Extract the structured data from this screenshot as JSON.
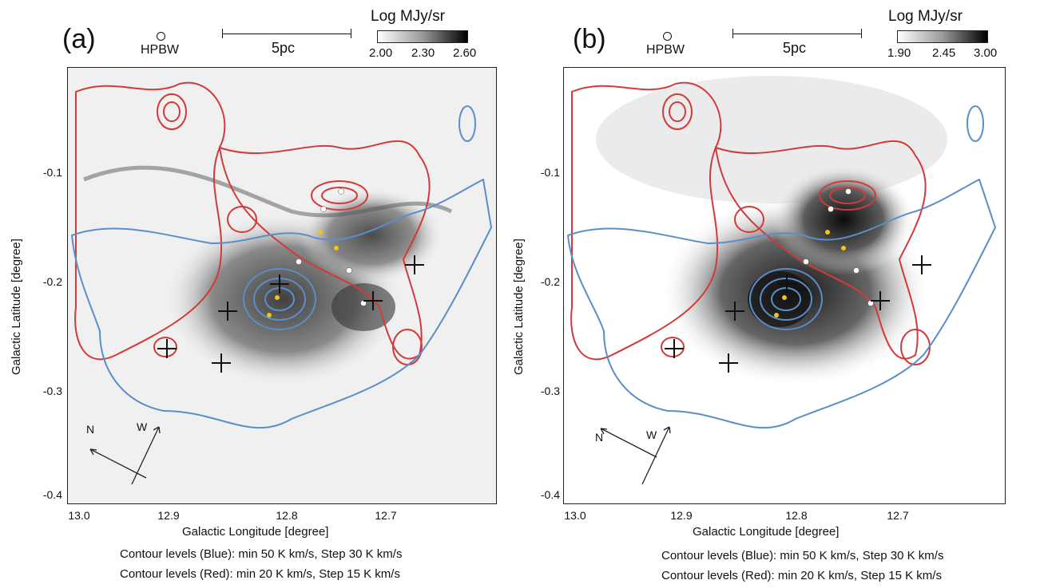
{
  "panels": [
    {
      "label": "(a)",
      "hpbw_label": "HPBW",
      "scale_bar_label": "5pc",
      "colorbar": {
        "title": "Log MJy/sr",
        "ticks": [
          "2.00",
          "2.30",
          "2.60"
        ]
      },
      "axes": {
        "xlabel": "Galactic Longitude [degree]",
        "ylabel": "Galactic Latitude [degree]",
        "xticks": [
          "13.0",
          "12.9",
          "12.8",
          "12.7"
        ],
        "yticks": [
          "-0.1",
          "-0.2",
          "-0.3",
          "-0.4"
        ]
      },
      "compass": {
        "north": "N",
        "west": "W"
      },
      "contour_notes": [
        "Contour levels (Blue): min 50 K km/s, Step 30 K km/s",
        "Contour levels (Red): min 20 K km/s, Step 15 K km/s"
      ]
    },
    {
      "label": "(b)",
      "hpbw_label": "HPBW",
      "scale_bar_label": "5pc",
      "colorbar": {
        "title": "Log MJy/sr",
        "ticks": [
          "1.90",
          "2.45",
          "3.00"
        ]
      },
      "axes": {
        "xlabel": "Galactic Longitude [degree]",
        "ylabel": "Galactic Latitude [degree]",
        "xticks": [
          "13.0",
          "12.9",
          "12.8",
          "12.7"
        ],
        "yticks": [
          "-0.1",
          "-0.2",
          "-0.3",
          "-0.4"
        ]
      },
      "compass": {
        "north": "N",
        "west": "W"
      },
      "contour_notes": [
        "Contour levels (Blue): min 50 K km/s, Step 30 K km/s",
        "Contour levels (Red): min 20 K km/s, Step 15 K km/s"
      ]
    }
  ],
  "colors": {
    "blue_contour": "#5b8ec9",
    "red_contour": "#d23a3a",
    "yellow_source": "#f0c419",
    "white_source": "#ffffff"
  }
}
